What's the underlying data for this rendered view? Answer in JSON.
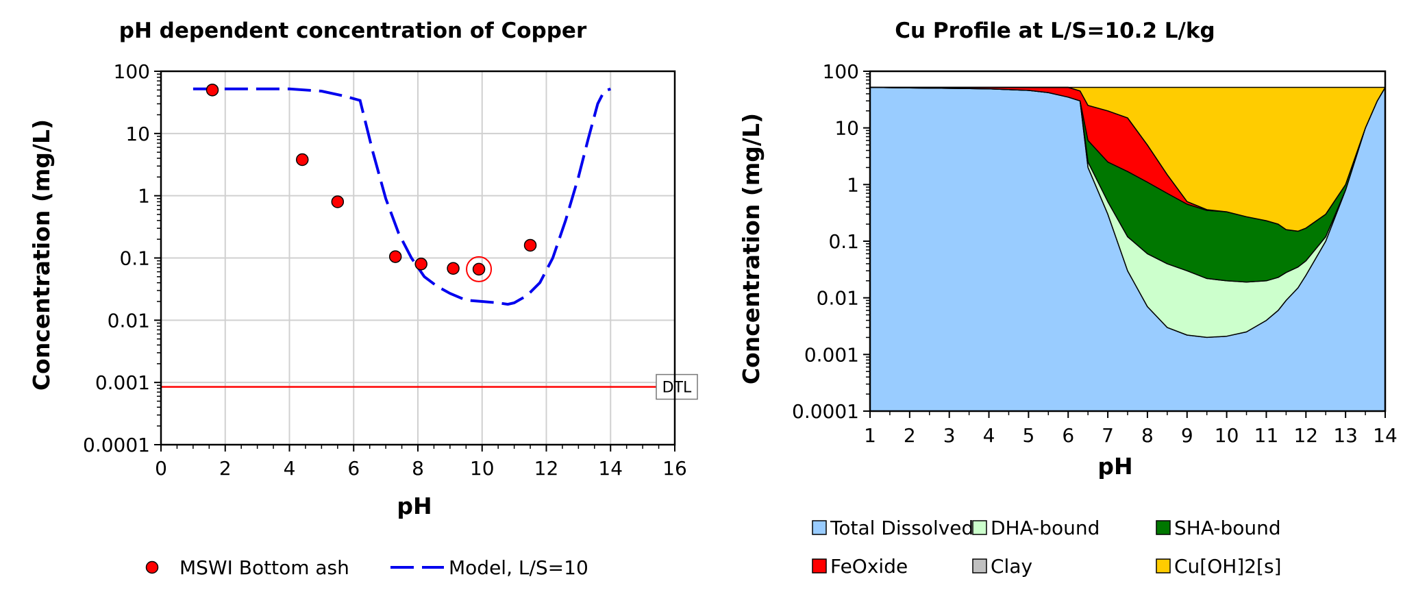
{
  "chart_data": [
    {
      "type": "scatter",
      "title": "pH dependent concentration of Copper",
      "xlabel": "pH",
      "ylabel": "Concentration (mg/L)",
      "xlim": [
        0,
        16
      ],
      "ylim": [
        0.0001,
        100
      ],
      "yscale": "log",
      "grid": true,
      "x_ticks": [
        "0",
        "2",
        "4",
        "6",
        "8",
        "10",
        "12",
        "14",
        "16"
      ],
      "y_ticks": [
        "0.0001",
        "0.001",
        "0.01",
        "0.1",
        "1",
        "10",
        "100"
      ],
      "legend_position": "bottom",
      "series": [
        {
          "name": "MSWI Bottom ash",
          "kind": "scatter",
          "color": "#ff0000",
          "x": [
            1.6,
            4.4,
            5.5,
            7.3,
            8.1,
            9.1,
            9.9,
            11.5
          ],
          "y": [
            50,
            3.8,
            0.8,
            0.105,
            0.08,
            0.068,
            0.066,
            0.16
          ],
          "highlighted_point": 6
        },
        {
          "name": "Model, L/S=10",
          "kind": "line",
          "style": "dashed",
          "color": "#0000ee",
          "x": [
            1,
            2,
            3,
            4,
            5,
            5.7,
            6.2,
            6.6,
            7.0,
            7.4,
            7.8,
            8.2,
            8.6,
            9.0,
            9.5,
            10.0,
            10.5,
            10.8,
            11.0,
            11.4,
            11.8,
            12.2,
            12.6,
            13.0,
            13.3,
            13.6,
            13.8,
            14.0
          ],
          "y": [
            52,
            52,
            52,
            52,
            48,
            40,
            34,
            5,
            0.9,
            0.25,
            0.1,
            0.05,
            0.035,
            0.027,
            0.021,
            0.02,
            0.019,
            0.018,
            0.019,
            0.025,
            0.04,
            0.1,
            0.4,
            2,
            8,
            30,
            48,
            52
          ]
        }
      ],
      "reference_line": {
        "label": "DTL",
        "y": 0.00085,
        "color": "#ff0000"
      }
    },
    {
      "type": "area",
      "stacked": true,
      "title": "Cu Profile at L/S=10.2 L/kg",
      "xlabel": "pH",
      "ylabel": "Concentration (mg/L)",
      "xlim": [
        1,
        14
      ],
      "ylim": [
        0.0001,
        100
      ],
      "yscale": "log",
      "grid": false,
      "x_ticks": [
        "1",
        "2",
        "3",
        "4",
        "5",
        "6",
        "7",
        "8",
        "9",
        "10",
        "11",
        "12",
        "13",
        "14"
      ],
      "y_ticks": [
        "0.0001",
        "0.001",
        "0.01",
        "0.1",
        "1",
        "10",
        "100"
      ],
      "legend_position": "bottom",
      "x": [
        1,
        2,
        3,
        4,
        5,
        5.5,
        6,
        6.3,
        6.5,
        7.0,
        7.5,
        8.0,
        8.5,
        9.0,
        9.5,
        10.0,
        10.5,
        11.0,
        11.3,
        11.5,
        11.8,
        12.0,
        12.5,
        13.0,
        13.5,
        13.8,
        14.0
      ],
      "series": [
        {
          "name": "Total Dissolved",
          "color": "#99ccff",
          "values": [
            52,
            51,
            50,
            49,
            46,
            42,
            35,
            30,
            2,
            0.3,
            0.03,
            0.007,
            0.003,
            0.0022,
            0.002,
            0.0021,
            0.0025,
            0.004,
            0.006,
            0.009,
            0.015,
            0.025,
            0.1,
            0.8,
            10,
            30,
            52
          ]
        },
        {
          "name": "DHA-bound",
          "color": "#ccffcc",
          "top": [
            52,
            51,
            50,
            49,
            46,
            42,
            35,
            30,
            2.5,
            0.5,
            0.12,
            0.06,
            0.04,
            0.03,
            0.022,
            0.02,
            0.019,
            0.02,
            0.023,
            0.028,
            0.035,
            0.045,
            0.12,
            0.8,
            10,
            30,
            52
          ]
        },
        {
          "name": "SHA-bound",
          "color": "#007700",
          "top": [
            52,
            51,
            50,
            49,
            46,
            42,
            35,
            30,
            6,
            2.5,
            1.7,
            1.1,
            0.7,
            0.45,
            0.35,
            0.33,
            0.27,
            0.23,
            0.2,
            0.16,
            0.15,
            0.17,
            0.3,
            1.0,
            10,
            30,
            52
          ]
        },
        {
          "name": "FeOxide",
          "color": "#ff0000",
          "top": [
            52,
            52,
            52,
            52,
            52,
            52,
            52,
            45,
            25,
            20,
            15,
            5,
            1.5,
            0.5,
            0.36,
            0.33,
            0.27,
            0.23,
            0.2,
            0.16,
            0.15,
            0.17,
            0.3,
            1.0,
            10,
            30,
            52
          ]
        },
        {
          "name": "Clay",
          "color": "#c0c0c0",
          "top": [
            52,
            52,
            52,
            52,
            52,
            52,
            52,
            45,
            25,
            20,
            15,
            5,
            1.5,
            0.5,
            0.36,
            0.33,
            0.27,
            0.23,
            0.2,
            0.16,
            0.15,
            0.17,
            0.3,
            1.0,
            10,
            30,
            52
          ]
        },
        {
          "name": "Cu[OH]2[s]",
          "color": "#ffcc00",
          "top": [
            52,
            52,
            52,
            52,
            52,
            52,
            52,
            52,
            52,
            52,
            52,
            52,
            52,
            52,
            52,
            52,
            52,
            52,
            52,
            52,
            52,
            52,
            52,
            52,
            52,
            52,
            52
          ]
        }
      ]
    }
  ]
}
